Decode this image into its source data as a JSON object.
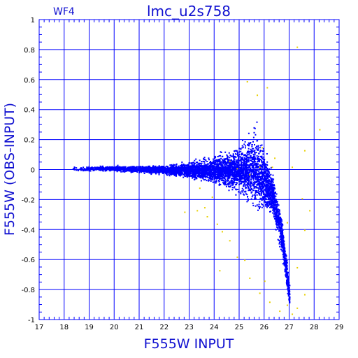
{
  "panel_label": "WF4",
  "chart_data": {
    "type": "scatter",
    "title": "lmc_u2s758",
    "xlabel": "F555W INPUT",
    "ylabel": "F555W (OBS-INPUT)",
    "xlim": [
      17,
      29
    ],
    "ylim": [
      -1,
      1
    ],
    "x_ticks": [
      "17",
      "18",
      "19",
      "20",
      "21",
      "22",
      "23",
      "24",
      "25",
      "26",
      "27",
      "28",
      "29"
    ],
    "y_ticks": [
      "1",
      "0.8",
      "0.6",
      "0.4",
      "0.2",
      "0",
      "-0.2",
      "-0.4",
      "-0.6",
      "-0.8",
      "-1"
    ],
    "grid": true,
    "series": [
      {
        "color": "#0000ff",
        "description": "dense locus of recovered stars: near 0 at x=18.3-22, scatter widening to about +/-0.35 by x=25.7, then a tail curving down to about -0.95 near x=27",
        "envelope": [
          {
            "x": 18.3,
            "center": 0.01,
            "half_width": 0.02
          },
          {
            "x": 19.0,
            "center": 0.01,
            "half_width": 0.02
          },
          {
            "x": 20.0,
            "center": 0.01,
            "half_width": 0.025
          },
          {
            "x": 21.0,
            "center": 0.005,
            "half_width": 0.03
          },
          {
            "x": 22.0,
            "center": 0.0,
            "half_width": 0.04
          },
          {
            "x": 23.0,
            "center": 0.0,
            "half_width": 0.07
          },
          {
            "x": 24.0,
            "center": 0.0,
            "half_width": 0.12
          },
          {
            "x": 25.0,
            "center": 0.0,
            "half_width": 0.22
          },
          {
            "x": 25.7,
            "center": 0.0,
            "half_width": 0.35
          },
          {
            "x": 26.3,
            "center": -0.15,
            "half_width": 0.2
          },
          {
            "x": 26.7,
            "center": -0.45,
            "half_width": 0.18
          },
          {
            "x": 27.0,
            "center": -0.85,
            "half_width": 0.12
          }
        ]
      },
      {
        "color": "#e8d000",
        "description": "sparse outliers scattered mainly between x=23 and x=28",
        "points": [
          [
            22.8,
            -0.28
          ],
          [
            23.3,
            -0.27
          ],
          [
            23.6,
            -0.25
          ],
          [
            23.7,
            -0.31
          ],
          [
            24.1,
            -0.36
          ],
          [
            24.3,
            -0.41
          ],
          [
            24.6,
            -0.47
          ],
          [
            24.2,
            -0.67
          ],
          [
            24.9,
            -0.58
          ],
          [
            25.2,
            -0.6
          ],
          [
            25.4,
            -0.72
          ],
          [
            25.8,
            -0.82
          ],
          [
            26.0,
            -0.74
          ],
          [
            26.2,
            -0.88
          ],
          [
            26.6,
            -0.94
          ],
          [
            26.9,
            -0.9
          ],
          [
            27.1,
            -0.96
          ],
          [
            27.3,
            -0.92
          ],
          [
            27.6,
            -0.83
          ],
          [
            27.3,
            -0.65
          ],
          [
            26.9,
            -0.35
          ],
          [
            27.6,
            -0.4
          ],
          [
            27.8,
            -0.27
          ],
          [
            27.5,
            -0.19
          ],
          [
            27.1,
            0.02
          ],
          [
            26.4,
            0.08
          ],
          [
            25.9,
            0.15
          ],
          [
            26.1,
            0.55
          ],
          [
            25.7,
            0.5
          ],
          [
            25.3,
            0.59
          ],
          [
            27.6,
            0.13
          ],
          [
            28.2,
            0.27
          ],
          [
            27.3,
            0.82
          ],
          [
            26.3,
            0.02
          ],
          [
            25.8,
            0.02
          ],
          [
            24.9,
            0.01
          ],
          [
            24.6,
            0.06
          ],
          [
            25.4,
            -0.03
          ],
          [
            23.9,
            -0.18
          ],
          [
            23.4,
            -0.12
          ]
        ]
      }
    ]
  }
}
